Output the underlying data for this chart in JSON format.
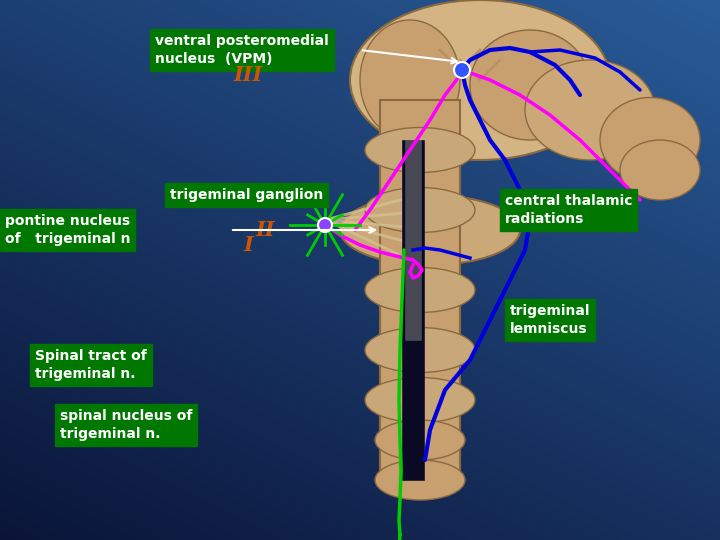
{
  "bg_gradient_top": "#061538",
  "bg_gradient_bottom": "#1a6090",
  "labels": {
    "vpm": "ventral posteromedial\nnucleus  (VPM)",
    "pontine": "pontine nucleus\nof   trigeminal n",
    "central": "central thalamic\nradiations",
    "ganglion": "trigeminal ganglion",
    "lemniscus": "trigeminal\nlemniscus",
    "spinal_tract": "Spinal tract of\ntrigeminal n.",
    "spinal_nucleus": "spinal nucleus of\ntrigeminal n.",
    "roman_I": "I",
    "roman_II": "II",
    "roman_III": "III"
  },
  "label_box_color": "#007700",
  "label_text_color": "#ffffff",
  "roman_color": "#cc5500",
  "blue_color": "#0000dd",
  "magenta_color": "#ff00ff",
  "green_color": "#00cc00",
  "dark_blue": "#000033"
}
